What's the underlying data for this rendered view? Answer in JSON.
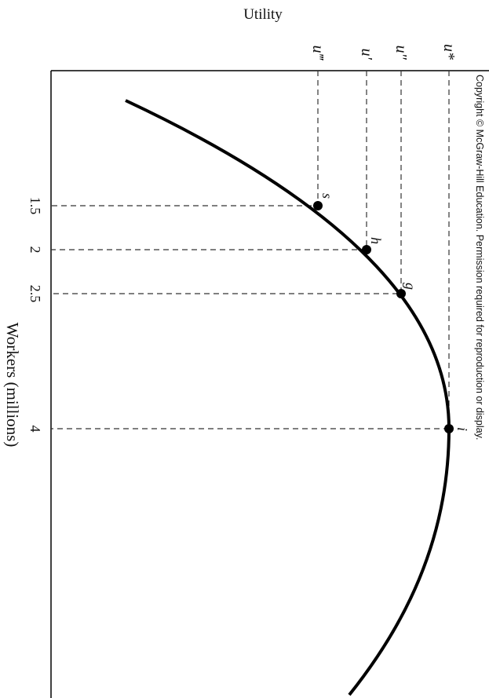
{
  "header": {
    "title": "Utility"
  },
  "axis": {
    "x_label": "Workers (millions)",
    "x_ticks": [
      "1.5",
      "2",
      "2.5",
      "4"
    ]
  },
  "utility_levels": [
    "u‴",
    "u′",
    "u″",
    "u*"
  ],
  "points": [
    "s",
    "h",
    "g",
    "i"
  ],
  "footer": {
    "copyright": "Copyright © McGraw-Hill Education. Permission required for reproduction or display."
  }
}
